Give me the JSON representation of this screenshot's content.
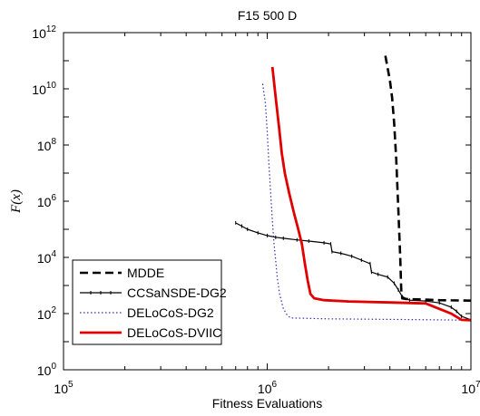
{
  "chart_data": {
    "type": "line",
    "title": "F15 500 D",
    "xlabel": "Fitness Evaluations",
    "ylabel": "F(x)",
    "x_scale": "log",
    "y_scale": "log",
    "xlim": [
      100000,
      10000000
    ],
    "ylim": [
      1,
      1000000000000
    ],
    "x_ticks": [
      {
        "value": 100000,
        "base": "10",
        "exp": "5"
      },
      {
        "value": 1000000,
        "base": "10",
        "exp": "6"
      },
      {
        "value": 10000000,
        "base": "10",
        "exp": "7"
      }
    ],
    "y_ticks": [
      {
        "value": 1,
        "base": "10",
        "exp": "0"
      },
      {
        "value": 100,
        "base": "10",
        "exp": "2"
      },
      {
        "value": 10000,
        "base": "10",
        "exp": "4"
      },
      {
        "value": 1000000,
        "base": "10",
        "exp": "6"
      },
      {
        "value": 100000000,
        "base": "10",
        "exp": "8"
      },
      {
        "value": 10000000000,
        "base": "10",
        "exp": "10"
      },
      {
        "value": 1000000000000,
        "base": "10",
        "exp": "12"
      }
    ],
    "legend_position": "bottom-left",
    "grid": false,
    "series": [
      {
        "name": "MDDE",
        "color": "#000000",
        "style": "dashed",
        "points": [
          [
            3800000,
            150000000000
          ],
          [
            4000000,
            20000000000
          ],
          [
            4100000,
            5000000000
          ],
          [
            4200000,
            600000000
          ],
          [
            4300000,
            30000000
          ],
          [
            4400000,
            500000
          ],
          [
            4500000,
            10000
          ],
          [
            4550000,
            700
          ],
          [
            4600000,
            350
          ],
          [
            4800000,
            330
          ],
          [
            5500000,
            320
          ],
          [
            7000000,
            300
          ],
          [
            10000000,
            290
          ]
        ]
      },
      {
        "name": "CCSaNSDE-DG2",
        "color": "#000000",
        "style": "solid-markers",
        "points": [
          [
            700000,
            170000
          ],
          [
            750000,
            130000
          ],
          [
            800000,
            100000
          ],
          [
            900000,
            75000
          ],
          [
            1000000,
            60000
          ],
          [
            1100000,
            52000
          ],
          [
            1200000,
            48000
          ],
          [
            1400000,
            42000
          ],
          [
            1600000,
            38000
          ],
          [
            1900000,
            33000
          ],
          [
            2050000,
            30000
          ],
          [
            2080000,
            16000
          ],
          [
            2300000,
            14000
          ],
          [
            2600000,
            11000
          ],
          [
            2900000,
            8000
          ],
          [
            3200000,
            6000
          ],
          [
            3250000,
            3000
          ],
          [
            3500000,
            2500
          ],
          [
            3900000,
            2000
          ],
          [
            4200000,
            1200
          ],
          [
            4400000,
            700
          ],
          [
            4600000,
            400
          ],
          [
            5000000,
            300
          ],
          [
            6000000,
            280
          ],
          [
            7000000,
            240
          ],
          [
            8000000,
            170
          ],
          [
            8500000,
            120
          ],
          [
            9000000,
            80
          ],
          [
            10000000,
            60
          ]
        ]
      },
      {
        "name": "DELoCoS-DG2",
        "color": "#3030b0",
        "style": "dotted",
        "points": [
          [
            950000,
            15000000000
          ],
          [
            980000,
            3000000000
          ],
          [
            1000000,
            300000000
          ],
          [
            1020000,
            20000000
          ],
          [
            1040000,
            2000000
          ],
          [
            1060000,
            200000
          ],
          [
            1080000,
            30000
          ],
          [
            1100000,
            8000
          ],
          [
            1120000,
            2000
          ],
          [
            1150000,
            500
          ],
          [
            1200000,
            150
          ],
          [
            1250000,
            90
          ],
          [
            1300000,
            70
          ],
          [
            2000000,
            65
          ],
          [
            4000000,
            62
          ],
          [
            7000000,
            60
          ],
          [
            10000000,
            58
          ]
        ]
      },
      {
        "name": "DELoCoS-DVIIC",
        "color": "#e00000",
        "style": "solid",
        "points": [
          [
            1060000,
            60000000000
          ],
          [
            1100000,
            5000000000
          ],
          [
            1140000,
            500000000
          ],
          [
            1180000,
            50000000
          ],
          [
            1220000,
            10000000
          ],
          [
            1280000,
            2000000
          ],
          [
            1350000,
            400000
          ],
          [
            1420000,
            100000
          ],
          [
            1480000,
            30000
          ],
          [
            1530000,
            6000
          ],
          [
            1580000,
            1500
          ],
          [
            1630000,
            500
          ],
          [
            1700000,
            350
          ],
          [
            1900000,
            300
          ],
          [
            2500000,
            270
          ],
          [
            4000000,
            250
          ],
          [
            6000000,
            230
          ],
          [
            8000000,
            100
          ],
          [
            9000000,
            60
          ],
          [
            10000000,
            58
          ]
        ]
      }
    ]
  }
}
